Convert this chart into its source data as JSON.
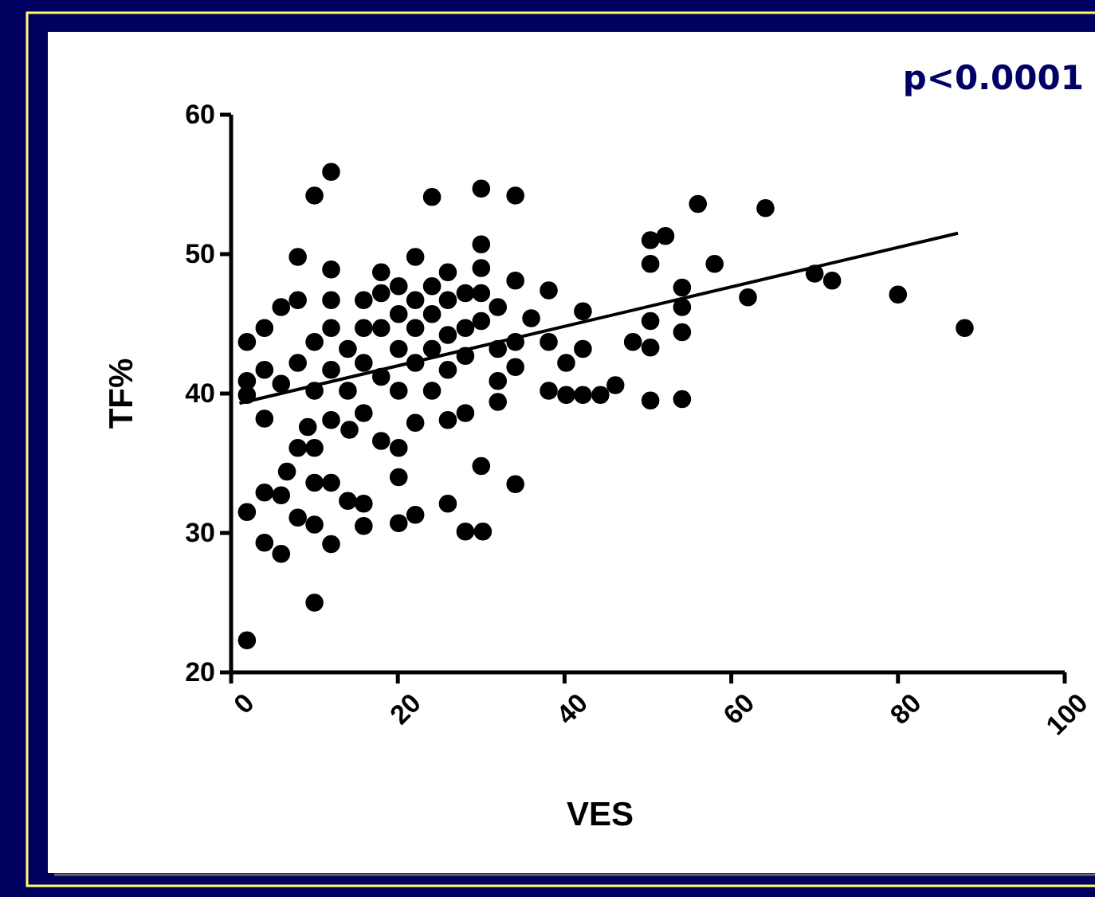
{
  "chart_data": {
    "type": "scatter",
    "xlabel": "VES",
    "ylabel": "TF%",
    "xlim": [
      0,
      100
    ],
    "xticks": [
      0,
      20,
      40,
      60,
      80,
      100
    ],
    "ylim": [
      20,
      60
    ],
    "yticks": [
      20,
      30,
      40,
      50,
      60
    ],
    "annotations": [
      "p<0.0001"
    ],
    "series": [
      {
        "color": "#000000",
        "marker": "circle",
        "x": [
          1.9,
          10,
          10,
          12,
          24.1,
          30,
          34.1,
          8,
          12,
          22.1,
          18,
          26,
          30,
          30,
          34.1,
          30,
          34.1,
          26,
          28.1,
          30.2,
          20.1,
          22.1,
          15.9,
          15.9,
          12,
          10,
          8,
          6,
          4,
          1.9,
          4,
          6,
          12,
          10,
          14,
          20.1,
          20.1,
          18,
          6.7,
          8,
          10,
          9.2,
          12,
          14.2,
          15.9,
          22.1,
          26,
          28.1,
          32,
          1.9,
          1.9,
          1.9,
          4,
          4,
          4,
          6,
          6,
          8,
          8,
          10,
          10,
          12,
          12,
          12,
          14,
          14,
          15.9,
          15.9,
          15.9,
          18,
          18,
          18,
          20.1,
          20.1,
          20.1,
          20.1,
          22.1,
          22.1,
          22.1,
          24.1,
          24.1,
          24.1,
          24.1,
          26,
          26,
          26,
          28.1,
          28.1,
          28.1,
          30,
          30,
          32,
          32,
          32,
          34.1,
          34.1,
          36,
          38.1,
          38.1,
          38.1,
          40.2,
          40.2,
          42.2,
          42.2,
          42.2,
          44.3,
          46.1,
          48.2,
          50.3,
          50.3,
          50.3,
          50.3,
          52.1,
          50.3,
          54.1,
          54.1,
          54.1,
          54.1,
          56,
          58,
          62,
          64.1,
          70,
          72.1,
          80,
          88
        ],
        "values": [
          22.3,
          25,
          54.2,
          55.9,
          54.1,
          54.7,
          54.2,
          49.8,
          48.9,
          49.8,
          48.7,
          48.7,
          50.7,
          49,
          48.1,
          34.8,
          33.5,
          32.1,
          30.1,
          30.1,
          30.7,
          31.3,
          32.1,
          30.5,
          29.2,
          30.6,
          31.1,
          28.5,
          29.3,
          31.5,
          32.9,
          32.7,
          33.6,
          33.6,
          32.3,
          34,
          36.1,
          36.6,
          34.4,
          36.1,
          36.1,
          37.6,
          38.1,
          37.4,
          38.6,
          37.9,
          38.1,
          38.6,
          39.4,
          43.7,
          40.9,
          39.9,
          38.2,
          41.7,
          44.7,
          40.7,
          46.2,
          46.7,
          42.2,
          40.2,
          43.7,
          46.7,
          44.7,
          41.7,
          43.2,
          40.2,
          46.7,
          44.7,
          42.2,
          47.2,
          44.7,
          41.2,
          47.7,
          45.7,
          43.2,
          40.2,
          46.7,
          44.7,
          42.2,
          47.7,
          45.7,
          43.2,
          40.2,
          46.7,
          44.2,
          41.7,
          47.2,
          44.7,
          42.7,
          47.2,
          45.2,
          46.2,
          43.2,
          40.9,
          43.7,
          41.9,
          45.4,
          47.4,
          43.7,
          40.2,
          42.2,
          39.9,
          45.9,
          43.2,
          39.9,
          39.9,
          40.6,
          43.7,
          43.3,
          45.2,
          49.3,
          51,
          51.3,
          39.5,
          39.6,
          44.4,
          46.2,
          47.6,
          53.6,
          49.3,
          46.9,
          53.3,
          48.6,
          48.1,
          47.1,
          44.7
        ]
      },
      {
        "type": "line",
        "color": "#000000",
        "x": [
          1,
          87.2
        ],
        "values": [
          39.3,
          51.5
        ]
      }
    ]
  }
}
